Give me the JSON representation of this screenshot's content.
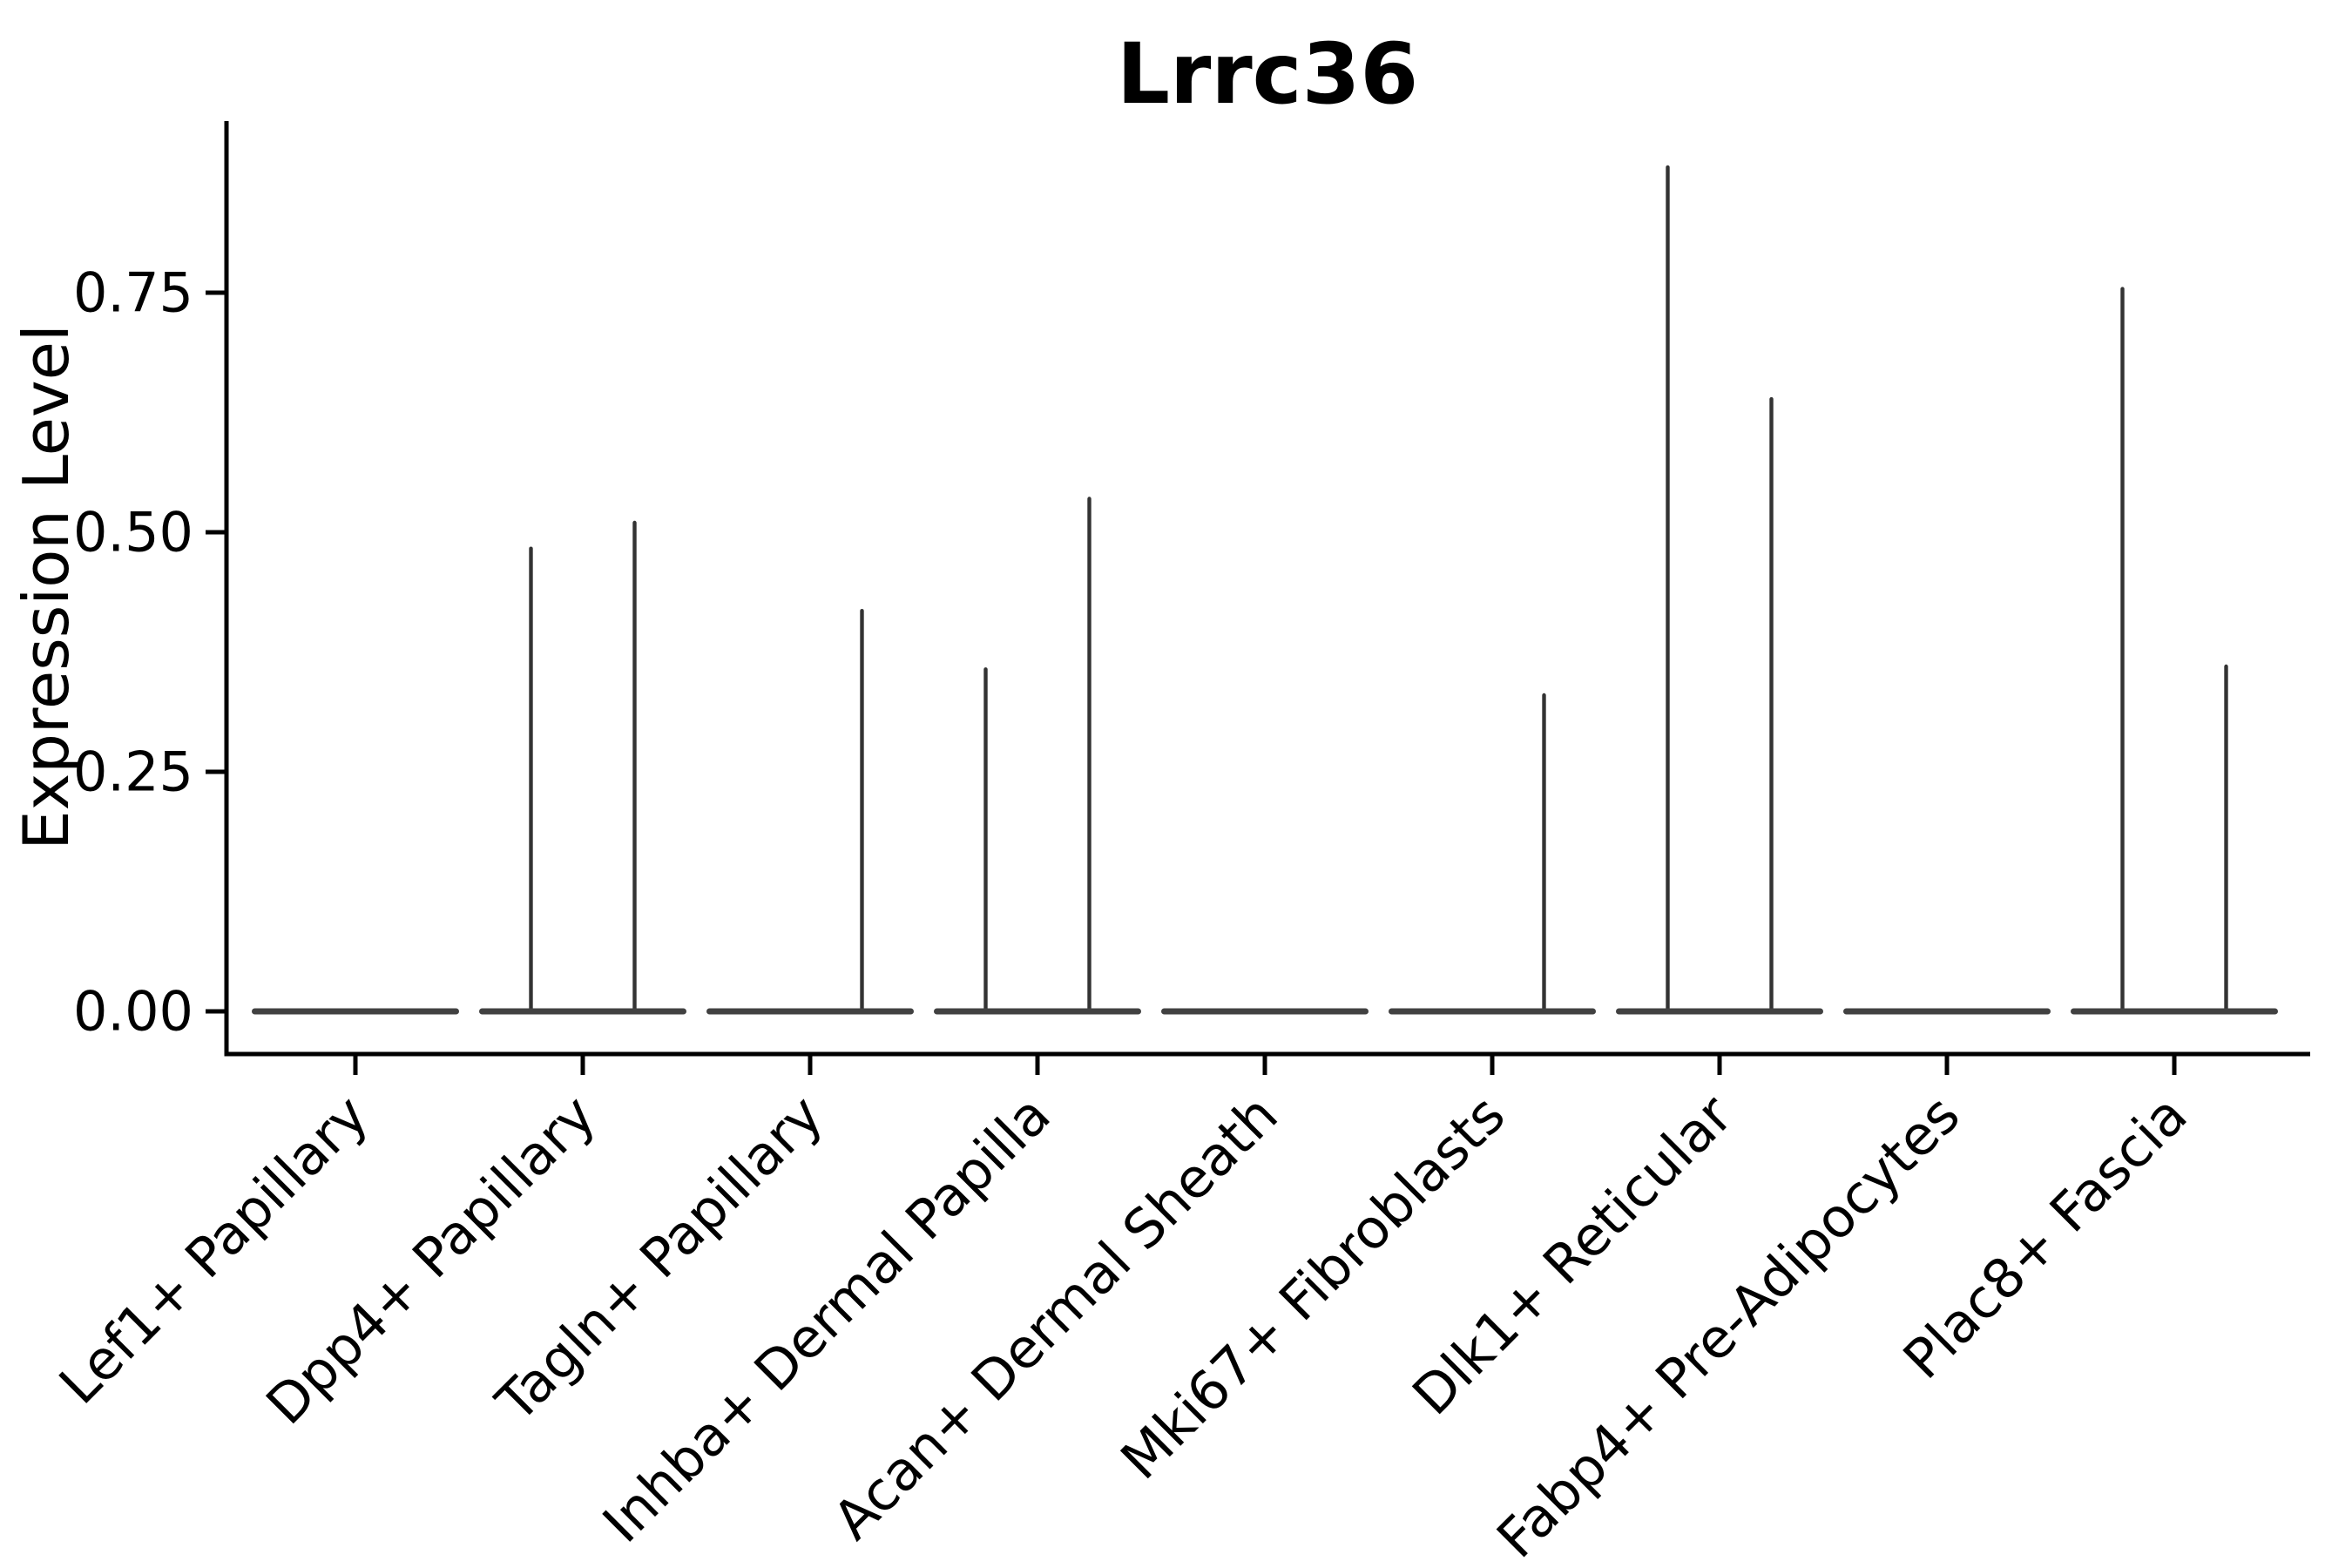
{
  "chart_data": {
    "type": "violin",
    "title": "Lrrc36",
    "ylabel": "Expression Level",
    "grid": false,
    "legend_position": "none",
    "ylim": [
      0,
      0.93
    ],
    "yticks": [
      {
        "value": 0.0,
        "label": "0.00"
      },
      {
        "value": 0.25,
        "label": "0.25"
      },
      {
        "value": 0.5,
        "label": "0.50"
      },
      {
        "value": 0.75,
        "label": "0.75"
      }
    ],
    "baseline_value": 0,
    "violin_style": "flat baseline body at 0 with thin vertical density spikes; two dodged violins (left/right) per category; black outline, no fill color, no legend shown",
    "categories": [
      {
        "label": "Lef1+ Papillary",
        "left_max": 0,
        "right_max": 0
      },
      {
        "label": "Dpp4+ Papillary",
        "left_max": 0.485,
        "right_max": 0.512
      },
      {
        "label": "Tagln+ Papillary",
        "left_max": 0,
        "right_max": 0.42
      },
      {
        "label": "Inhba+ Dermal Papilla",
        "left_max": 0.359,
        "right_max": 0.537
      },
      {
        "label": "Acan+ Dermal Sheath",
        "left_max": 0,
        "right_max": 0
      },
      {
        "label": "Mki67+ Fibroblasts",
        "left_max": 0,
        "right_max": 0.332
      },
      {
        "label": "Dlk1+ Reticular",
        "left_max": 0.883,
        "right_max": 0.641
      },
      {
        "label": "Fabp4+ Pre-Adipocytes",
        "left_max": 0,
        "right_max": 0
      },
      {
        "label": "Plac8+ Fascia",
        "left_max": 0.756,
        "right_max": 0.362
      }
    ],
    "colors": {
      "axis": "#000000",
      "text": "#000000",
      "violin": "#333333",
      "violin_body": "#414141",
      "background": "#ffffff"
    }
  }
}
